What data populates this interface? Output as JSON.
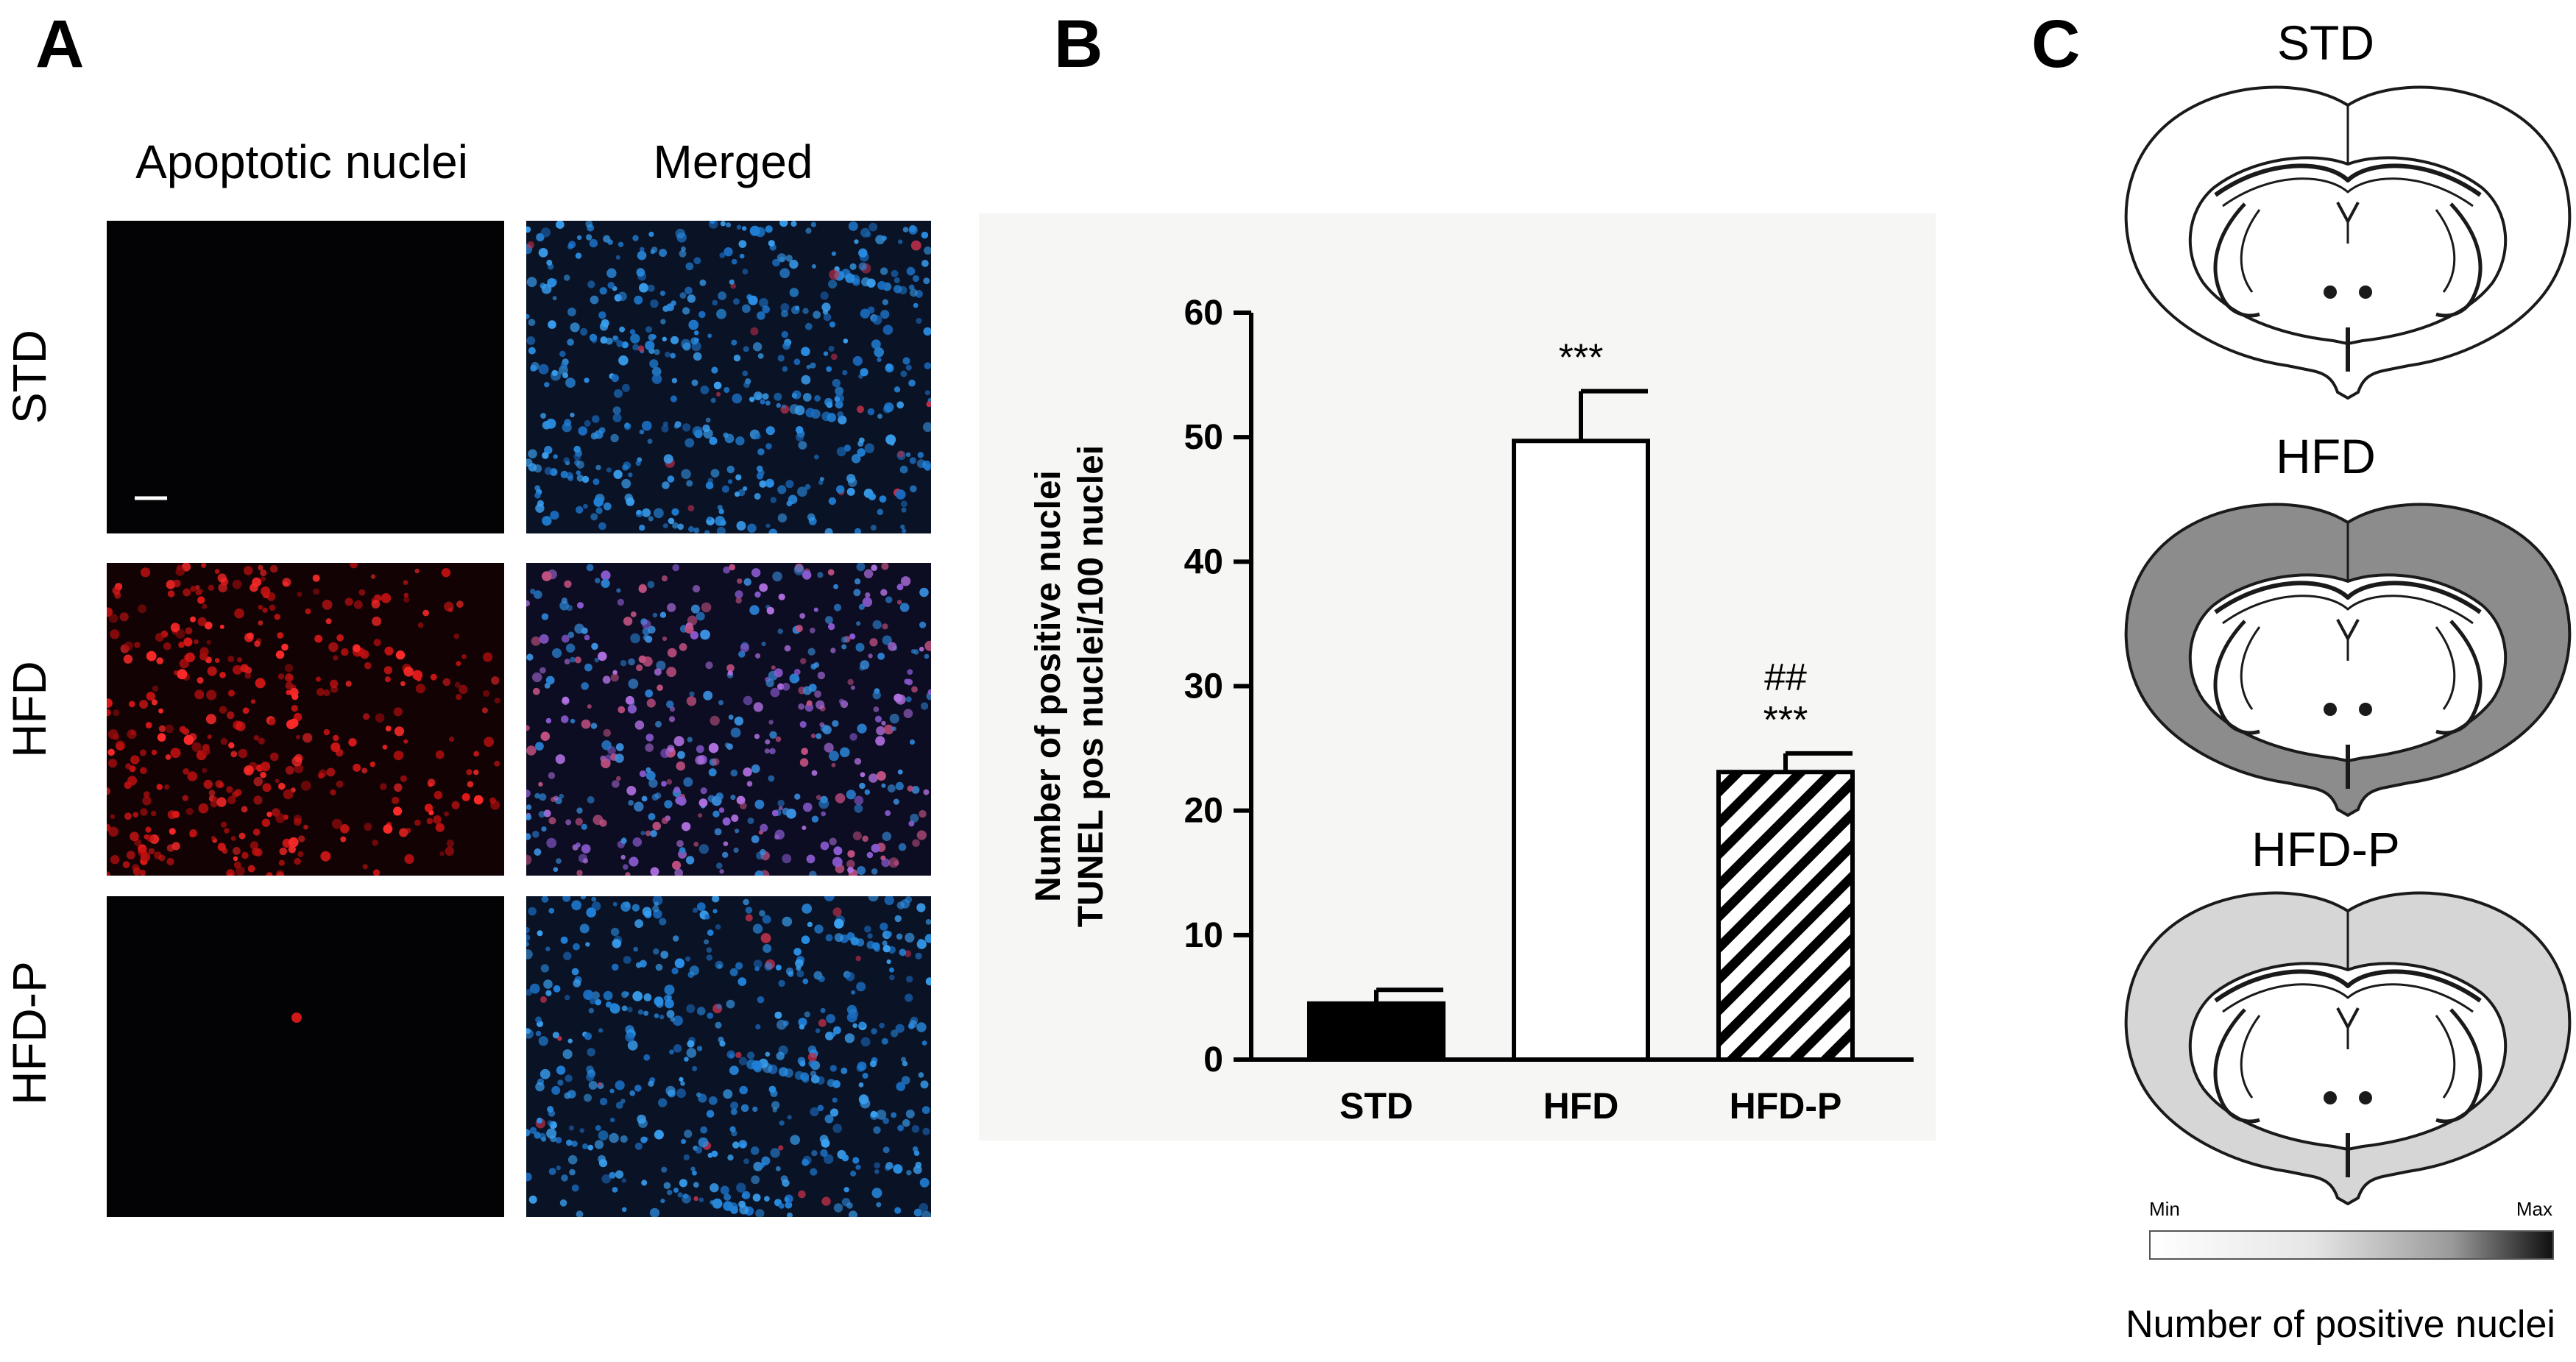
{
  "panel_a": {
    "letter": "A",
    "col_headers": [
      "Apoptotic nuclei",
      "Merged"
    ],
    "row_labels": [
      "STD",
      "HFD",
      "HFD-P"
    ]
  },
  "panel_b": {
    "letter": "B"
  },
  "panel_c": {
    "letter": "C",
    "brains": [
      {
        "title": "STD",
        "fill": "#ffffff"
      },
      {
        "title": "HFD",
        "fill": "#8c8c8c"
      },
      {
        "title": "HFD-P",
        "fill": "#d6d6d6"
      }
    ],
    "scale_min": "Min",
    "scale_max": "Max",
    "scale_label": "Number of positive nuclei"
  },
  "chart_data": {
    "type": "bar",
    "categories": [
      "STD",
      "HFD",
      "HFD-P"
    ],
    "values": [
      4.5,
      49.7,
      23.1
    ],
    "errors": [
      1.1,
      4.0,
      1.5
    ],
    "bar_styles": [
      "solid-black",
      "white",
      "hatched"
    ],
    "annotations": [
      {
        "category": "HFD",
        "text": [
          "***"
        ]
      },
      {
        "category": "HFD-P",
        "text": [
          "##",
          "***"
        ]
      }
    ],
    "ylabel_lines": [
      "Number of positive nuclei",
      "TUNEL pos nuclei/100 nuclei"
    ],
    "xlabel": "",
    "ylim": [
      0,
      60
    ],
    "yticks": [
      0,
      10,
      20,
      30,
      40,
      50,
      60
    ],
    "grid": false
  }
}
